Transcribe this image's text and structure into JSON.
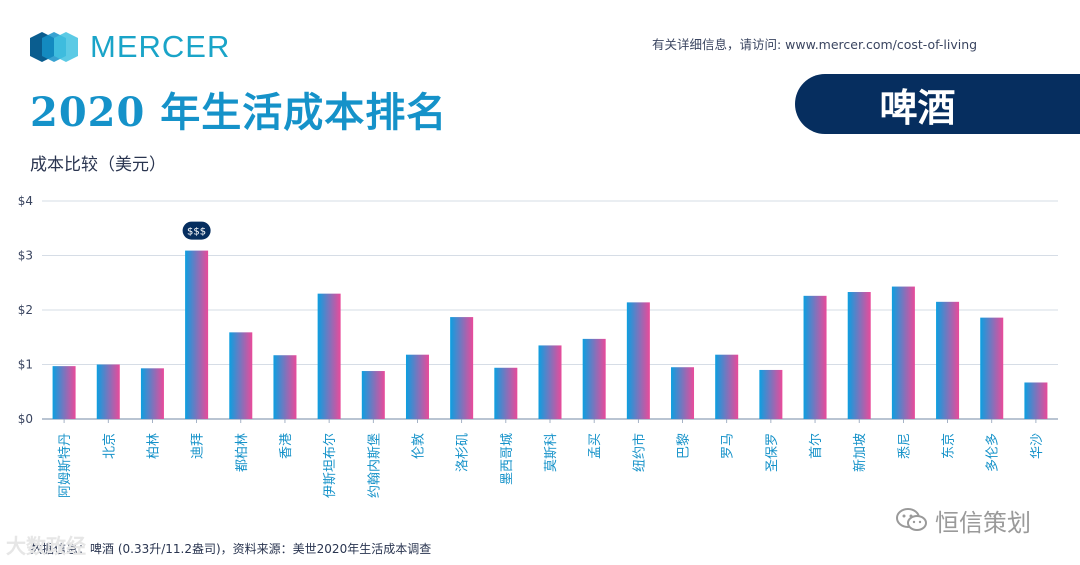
{
  "brand": {
    "logo_text": "MERCER",
    "info_text": "有关详细信息，请访问: www.mercer.com/cost-of-living"
  },
  "title": "2020 年生活成本排名",
  "badge_label": "啤酒",
  "subtitle": "成本比较（美元）",
  "footnote": "数据信息：啤酒 (0.33升/11.2盎司)，资料来源：美世2020年生活成本调查",
  "watermarks": {
    "left": "大数政经",
    "right": "恒信策划"
  },
  "colors": {
    "brand_teal": "#1aa4c8",
    "title_blue": "#1592c9",
    "badge_navy": "#062e5f",
    "bar_gradient_start": "#0c9fe0",
    "bar_gradient_end": "#ea4a9a",
    "axis_label": "#1592c9"
  },
  "chart_data": {
    "type": "bar",
    "title": "",
    "xlabel": "",
    "ylabel": "成本比较（美元）",
    "ylim": [
      0,
      4
    ],
    "y_ticks": [
      "$0",
      "$1",
      "$2",
      "$3",
      "$4"
    ],
    "grid": true,
    "categories": [
      "阿姆斯特丹",
      "北京",
      "柏林",
      "迪拜",
      "都柏林",
      "香港",
      "伊斯坦布尔",
      "约翰内斯堡",
      "伦敦",
      "洛杉矶",
      "墨西哥城",
      "莫斯科",
      "孟买",
      "纽约市",
      "巴黎",
      "罗马",
      "圣保罗",
      "首尔",
      "新加坡",
      "悉尼",
      "东京",
      "多伦多",
      "华沙"
    ],
    "values": [
      0.97,
      1.0,
      0.93,
      3.09,
      1.59,
      1.17,
      2.3,
      0.88,
      1.18,
      1.87,
      0.94,
      1.35,
      1.47,
      2.14,
      0.95,
      1.18,
      0.9,
      2.26,
      2.33,
      2.43,
      2.15,
      1.86,
      0.67
    ],
    "annotations": [
      {
        "category": "迪拜",
        "text": "$$$"
      }
    ]
  }
}
